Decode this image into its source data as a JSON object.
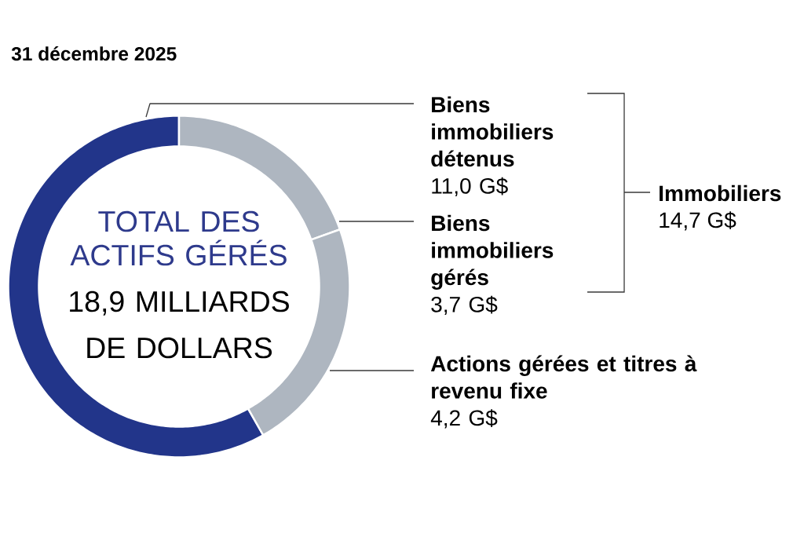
{
  "chart_data": {
    "type": "donut",
    "title": "31 décembre 2025",
    "categories": [
      "Biens immobiliers détenus",
      "Biens immobiliers gérés",
      "Actions gérées et titres à revenu fixe"
    ],
    "values": [
      11.0,
      3.7,
      4.2
    ],
    "colors": [
      "#22358a",
      "#aeb6c0",
      "#aeb6c0"
    ],
    "value_labels": [
      "11,0 G$",
      "3,7 G$",
      "4,2 G$"
    ],
    "annotations": [
      "TOTAL DES ACTIFS GÉRÉS",
      "18,9 MILLIARDS DE DOLLARS",
      "Immobiliers",
      "14,7 G$"
    ]
  }
}
